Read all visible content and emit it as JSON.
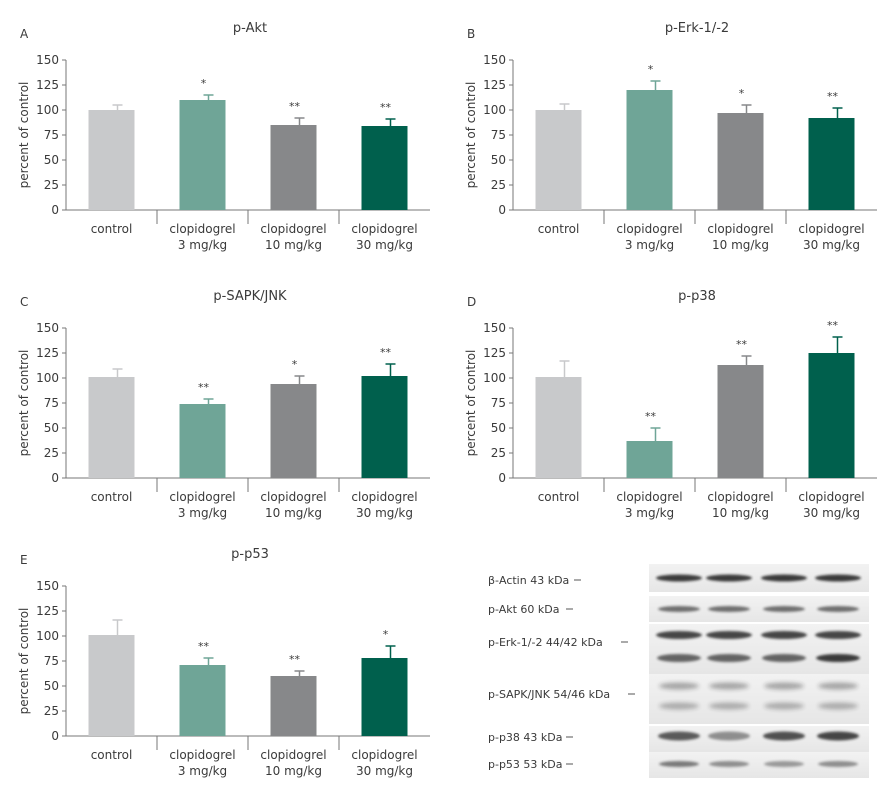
{
  "colors": {
    "control": "#c8c9cb",
    "clopi3": "#6fa597",
    "clopi10": "#87888a",
    "clopi30": "#00604d",
    "axis": "#777777",
    "text": "#3a3a3a"
  },
  "categories": [
    [
      "control"
    ],
    [
      "clopidogrel",
      "3 mg/kg"
    ],
    [
      "clopidogrel",
      "10 mg/kg"
    ],
    [
      "clopidogrel",
      "30 mg/kg"
    ]
  ],
  "chart_data": [
    {
      "type": "bar",
      "panel_label": "A",
      "title": "p-Akt",
      "ylabel": "percent of control",
      "ylim": [
        0,
        150
      ],
      "yticks": [
        "0",
        "25",
        "50",
        "75",
        "100",
        "125",
        "150"
      ],
      "categories": [
        "control",
        "clopidogrel 3 mg/kg",
        "clopidogrel 10 mg/kg",
        "clopidogrel 30 mg/kg"
      ],
      "values": [
        100,
        110,
        85,
        84
      ],
      "errors": [
        5,
        5,
        7,
        7
      ],
      "significance": [
        "",
        "*",
        "**",
        "**"
      ]
    },
    {
      "type": "bar",
      "panel_label": "B",
      "title": "p-Erk-1/-2",
      "ylabel": "percent of control",
      "ylim": [
        0,
        150
      ],
      "yticks": [
        "0",
        "25",
        "50",
        "75",
        "100",
        "125",
        "150"
      ],
      "categories": [
        "control",
        "clopidogrel 3 mg/kg",
        "clopidogrel 10 mg/kg",
        "clopidogrel 30 mg/kg"
      ],
      "values": [
        100,
        120,
        97,
        92
      ],
      "errors": [
        6,
        9,
        8,
        10
      ],
      "significance": [
        "",
        "*",
        "*",
        "**"
      ]
    },
    {
      "type": "bar",
      "panel_label": "C",
      "title": "p-SAPK/JNK",
      "ylabel": "percent of control",
      "ylim": [
        0,
        150
      ],
      "yticks": [
        "0",
        "25",
        "50",
        "75",
        "100",
        "125",
        "150"
      ],
      "categories": [
        "control",
        "clopidogrel 3 mg/kg",
        "clopidogrel 10 mg/kg",
        "clopidogrel 30 mg/kg"
      ],
      "values": [
        101,
        74,
        94,
        102
      ],
      "errors": [
        8,
        5,
        8,
        12
      ],
      "significance": [
        "",
        "**",
        "*",
        "**"
      ]
    },
    {
      "type": "bar",
      "panel_label": "D",
      "title": "p-p38",
      "ylabel": "percent of control",
      "ylim": [
        0,
        150
      ],
      "yticks": [
        "0",
        "25",
        "50",
        "75",
        "100",
        "125",
        "150"
      ],
      "categories": [
        "control",
        "clopidogrel 3 mg/kg",
        "clopidogrel 10 mg/kg",
        "clopidogrel 30 mg/kg"
      ],
      "values": [
        101,
        37,
        113,
        125
      ],
      "errors": [
        16,
        13,
        9,
        16
      ],
      "significance": [
        "",
        "**",
        "**",
        "**"
      ]
    },
    {
      "type": "bar",
      "panel_label": "E",
      "title": "p-p53",
      "ylabel": "percent of control",
      "ylim": [
        0,
        150
      ],
      "yticks": [
        "0",
        "25",
        "50",
        "75",
        "100",
        "125",
        "150"
      ],
      "categories": [
        "control",
        "clopidogrel 3 mg/kg",
        "clopidogrel 10 mg/kg",
        "clopidogrel 30 mg/kg"
      ],
      "values": [
        101,
        71,
        60,
        78
      ],
      "errors": [
        15,
        7,
        5,
        12
      ],
      "significance": [
        "",
        "**",
        "**",
        "*"
      ]
    }
  ],
  "blot": {
    "labels": [
      "β-Actin 43 kDa",
      "p-Akt 60 kDa",
      "p-Erk-1/-2 44/42 kDa",
      "p-SAPK/JNK 54/46 kDa",
      "p-p38 43 kDa",
      "p-p53 53 kDa"
    ]
  }
}
